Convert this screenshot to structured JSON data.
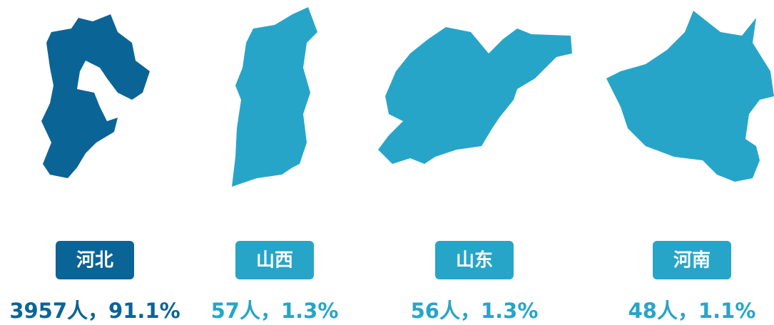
{
  "items": [
    {
      "name": "河北",
      "stat": "3957人，91.1%",
      "color": "#0b6496"
    },
    {
      "name": "山西",
      "stat": "57人，1.3%",
      "color": "#27a5c8"
    },
    {
      "name": "山东",
      "stat": "56人，1.3%",
      "color": "#27a5c8"
    },
    {
      "name": "河南",
      "stat": "48人，1.1%",
      "color": "#27a5c8"
    }
  ]
}
